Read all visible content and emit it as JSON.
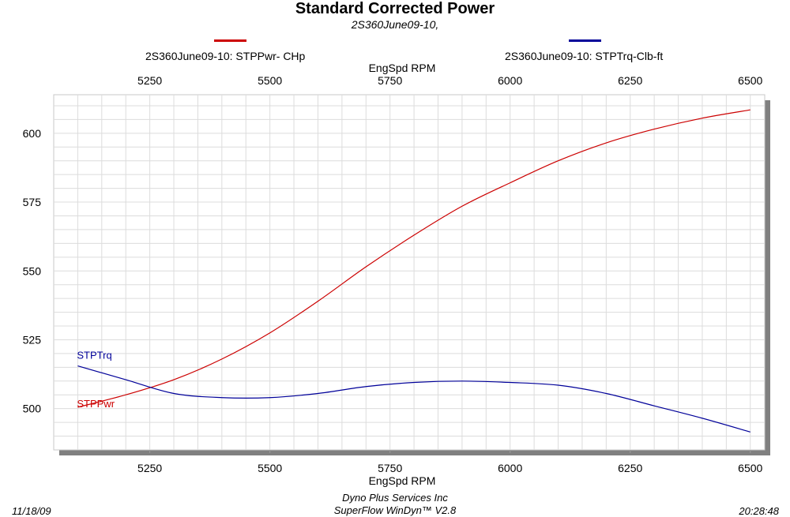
{
  "chart_data": {
    "type": "line",
    "title": "Standard Corrected Power",
    "subtitle": "2S360June09-10,",
    "xlabel": "EngSpd  RPM",
    "xlim": [
      5050,
      6530
    ],
    "ylim": [
      485,
      614
    ],
    "x_ticks": [
      5250,
      5500,
      5750,
      6000,
      6250,
      6500
    ],
    "y_ticks": [
      500,
      525,
      550,
      575,
      600
    ],
    "grid": true,
    "legend_position": "top",
    "series": [
      {
        "name": "2S360June09-10: STPPwr- CHp",
        "label": "STPPwr",
        "color": "#cc0000",
        "x": [
          5100,
          5200,
          5300,
          5400,
          5500,
          5600,
          5700,
          5800,
          5900,
          6000,
          6100,
          6200,
          6300,
          6400,
          6500
        ],
        "y": [
          500.5,
          505,
          510.5,
          518,
          527.5,
          539,
          551.5,
          563,
          573.5,
          582,
          590,
          596.5,
          601.5,
          605.5,
          608.5
        ]
      },
      {
        "name": "2S360June09-10: STPTrq-Clb-ft",
        "label": "STPTrq",
        "color": "#000099",
        "x": [
          5100,
          5200,
          5300,
          5400,
          5500,
          5600,
          5700,
          5800,
          5900,
          6000,
          6100,
          6200,
          6300,
          6400,
          6500
        ],
        "y": [
          515.5,
          510.5,
          505.5,
          504,
          504,
          505.5,
          508,
          509.5,
          510,
          509.5,
          508.5,
          505.5,
          501,
          496.5,
          491.5
        ]
      }
    ]
  },
  "footer": {
    "date": "11/18/09",
    "company": "Dyno Plus Services Inc",
    "software": "SuperFlow WinDyn™ V2.8",
    "time": "20:28:48"
  }
}
